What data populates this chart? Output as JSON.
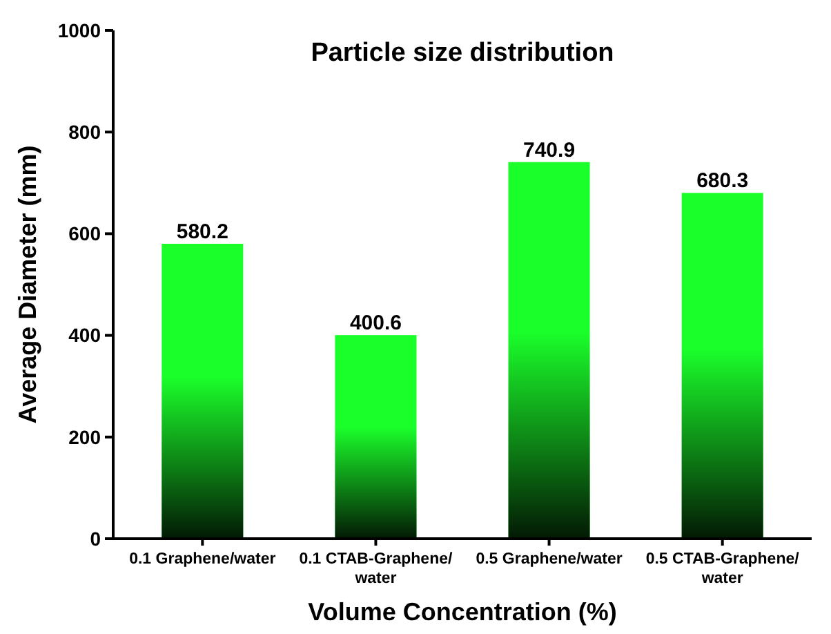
{
  "chart_data": {
    "type": "bar",
    "title": "Particle size distribution",
    "xlabel": "Volume Concentration (%)",
    "ylabel": "Average Diameter (mm)",
    "categories": [
      "0.1 Graphene/water",
      "0.1 CTAB-Graphene/water",
      "0.5 Graphene/water",
      "0.5 CTAB-Graphene/water"
    ],
    "values": [
      580.2,
      400.6,
      740.9,
      680.3
    ],
    "color": "#1aff2a",
    "ylim": [
      0,
      1000
    ],
    "yticks": [
      0,
      200,
      400,
      600,
      800,
      1000
    ],
    "data_labels": true,
    "grid": false
  }
}
